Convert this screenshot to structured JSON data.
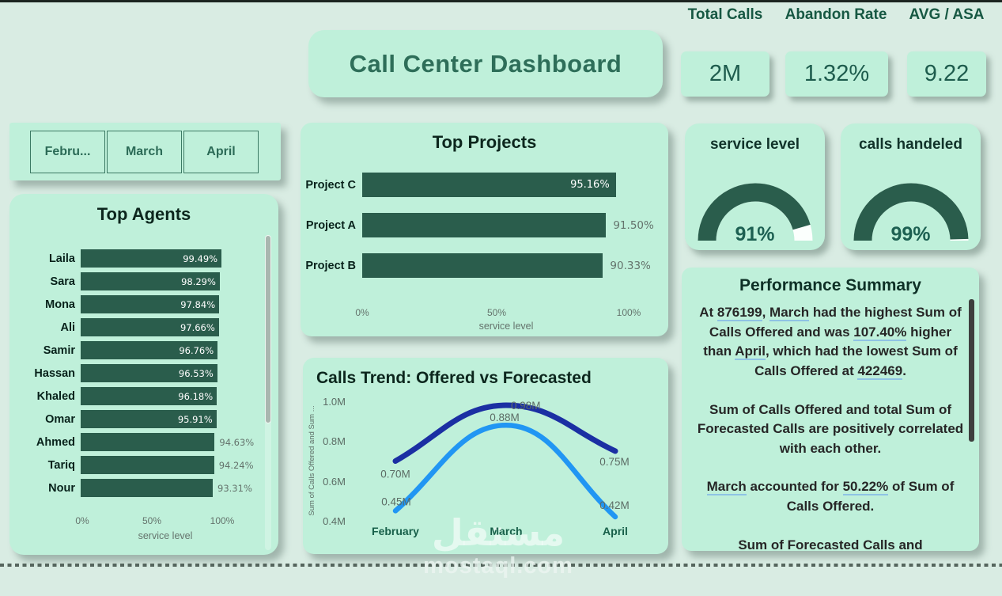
{
  "title_card": {
    "text": "Call Center Dashboard"
  },
  "header_kpis": [
    {
      "label": "Total Calls",
      "value": "2M"
    },
    {
      "label": "Abandon Rate",
      "value": "1.32%"
    },
    {
      "label": "AVG / ASA",
      "value": "9.22"
    }
  ],
  "month_filter": {
    "options": [
      "Febru...",
      "March",
      "April"
    ]
  },
  "chart_data": [
    {
      "type": "bar",
      "title": "Top Agents",
      "orientation": "horizontal",
      "categories": [
        "Laila",
        "Sara",
        "Mona",
        "Ali",
        "Samir",
        "Hassan",
        "Khaled",
        "Omar",
        "Ahmed",
        "Tariq",
        "Nour"
      ],
      "values": [
        99.49,
        98.29,
        97.84,
        97.66,
        96.76,
        96.53,
        96.18,
        95.91,
        94.63,
        94.24,
        93.31
      ],
      "value_labels": [
        "99.49%",
        "98.29%",
        "97.84%",
        "97.66%",
        "96.76%",
        "96.53%",
        "96.18%",
        "95.91%",
        "94.63%",
        "94.24%",
        "93.31%"
      ],
      "label_inside": [
        true,
        true,
        true,
        true,
        true,
        true,
        true,
        true,
        false,
        false,
        false
      ],
      "xlabel": "service level",
      "xlim": [
        0,
        100
      ],
      "xticks": [
        "0%",
        "50%",
        "100%"
      ],
      "bar_color": "#2a5d4c",
      "scrollbar": true
    },
    {
      "type": "bar",
      "title": "Top Projects",
      "orientation": "horizontal",
      "categories": [
        "Project C",
        "Project A",
        "Project B"
      ],
      "values": [
        95.16,
        91.5,
        90.33
      ],
      "value_labels": [
        "95.16%",
        "91.50%",
        "90.33%"
      ],
      "label_inside": [
        true,
        false,
        false
      ],
      "xlabel": "service level",
      "xlim": [
        0,
        100
      ],
      "xticks": [
        "0%",
        "50%",
        "100%"
      ],
      "bar_color": "#2a5d4c"
    },
    {
      "type": "gauge",
      "title": "service level",
      "value": 91,
      "max": 100,
      "label": "91%",
      "arc_color": "#2a5d4c",
      "rest_color": "#fbfffd"
    },
    {
      "type": "gauge",
      "title": "calls handeled",
      "value": 99,
      "max": 100,
      "label": "99%",
      "arc_color": "#2a5d4c",
      "rest_color": "#fbfffd"
    },
    {
      "type": "line",
      "title": "Calls Trend: Offered vs Forecasted",
      "x": [
        "February",
        "March",
        "April"
      ],
      "series": [
        {
          "name": "Forecasted Calls",
          "color": "#1b2fa3",
          "values_M": [
            0.7,
            0.98,
            0.75
          ],
          "labels": [
            "0.70M",
            "0.98M",
            "0.75M"
          ]
        },
        {
          "name": "Calls Offered",
          "color": "#2196f3",
          "values_M": [
            0.45,
            0.88,
            0.42
          ],
          "labels": [
            "0.45M",
            "0.88M",
            "0.42M"
          ]
        }
      ],
      "ylabel": "Sum of Calls Offered and Sum ...",
      "ylim": [
        0.4,
        1.0
      ],
      "yticks": [
        "1.0M",
        "0.8M",
        "0.6M",
        "0.4M"
      ],
      "grid": false,
      "legend": "none"
    }
  ],
  "summary": {
    "title": "Performance Summary",
    "paragraphs": [
      [
        {
          "t": "At "
        },
        {
          "t": "876199",
          "u": true
        },
        {
          "t": ", "
        },
        {
          "t": "March",
          "u": true
        },
        {
          "t": " had the highest Sum of Calls Offered and was "
        },
        {
          "t": "107.40%",
          "u": true
        },
        {
          "t": " higher than "
        },
        {
          "t": "April",
          "u": true
        },
        {
          "t": ", which had the lowest Sum of Calls Offered at "
        },
        {
          "t": "422469",
          "u": true
        },
        {
          "t": "."
        }
      ],
      [
        {
          "t": "Sum of Calls Offered and total Sum of Forecasted Calls are positively correlated with each other."
        }
      ],
      [
        {
          "t": "March",
          "u": true
        },
        {
          "t": " accounted for "
        },
        {
          "t": "50.22%",
          "u": true
        },
        {
          "t": " of Sum of Calls Offered."
        }
      ],
      [
        {
          "t": "Sum of Forecasted Calls and"
        }
      ]
    ]
  },
  "watermark": {
    "line1": "مستقل",
    "line2": "mostaql.com"
  }
}
